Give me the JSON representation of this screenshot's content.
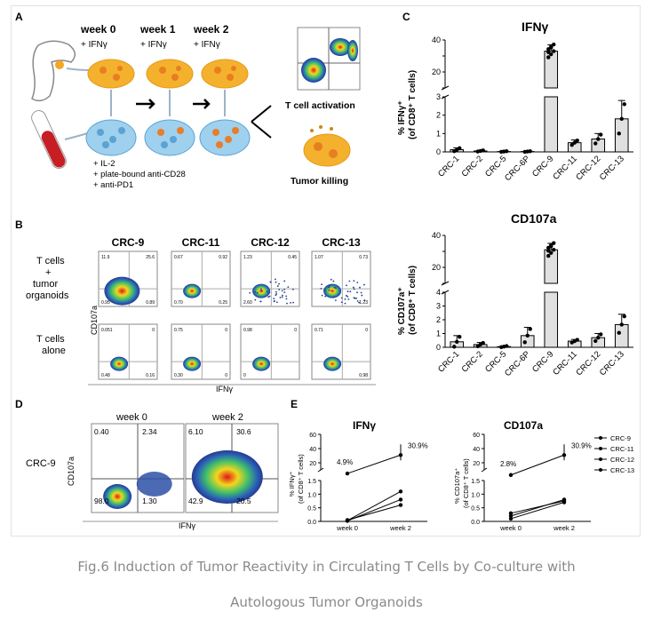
{
  "panels": {
    "A": {
      "letter": "A",
      "weeks": [
        "week 0",
        "week 1",
        "week 2"
      ],
      "ifng": "+ IFNγ",
      "conditions": [
        "+ IL-2",
        "+ plate-bound anti-CD28",
        "+ anti-PD1"
      ],
      "activation": "T cell activation",
      "killing": "Tumor killing"
    },
    "B": {
      "letter": "B",
      "samples": [
        "CRC-9",
        "CRC-11",
        "CRC-12",
        "CRC-13"
      ],
      "row1": [
        "T cells",
        "+",
        "tumor",
        "organoids"
      ],
      "row2": [
        "T cells",
        "alone"
      ],
      "ylabel": "CD107a",
      "xlabel": "IFNγ",
      "quad_top": [
        [
          "11.9",
          "25.6"
        ],
        [
          "0.67",
          "0.92"
        ],
        [
          "1.23",
          "0.45"
        ],
        [
          "1.07",
          "0.73"
        ]
      ],
      "quad_bot1": [
        [
          "0.95",
          "0.89"
        ],
        [
          "0.70",
          "0.25"
        ],
        [
          "2.60",
          ""
        ],
        [
          "",
          "1.23"
        ]
      ],
      "quad_alone_top": [
        [
          "0.051",
          "0"
        ],
        [
          "0.75",
          "0"
        ],
        [
          "0.98",
          "0"
        ],
        [
          "0.71",
          "0"
        ]
      ],
      "quad_alone_bot": [
        [
          "0.48",
          "0.16"
        ],
        [
          "0.30",
          "0"
        ],
        [
          "0",
          ""
        ],
        [
          "",
          "0.98"
        ]
      ]
    },
    "C": {
      "letter": "C",
      "title1": "IFNγ",
      "title2": "CD107a",
      "ylabel1a": "% IFNγ⁺",
      "ylabel1b": "(of CD8⁺ T cells)",
      "ylabel2a": "% CD107a⁺",
      "ylabel2b": "(of CD8⁺ T cells)",
      "categories": [
        "CRC-1",
        "CRC-2",
        "CRC-5",
        "CRC-6P",
        "CRC-9",
        "CRC-11",
        "CRC-12",
        "CRC-13"
      ]
    },
    "D": {
      "letter": "D",
      "sample": "CRC-9",
      "cols": [
        "week 0",
        "week 2"
      ],
      "ylabel": "CD107a",
      "xlabel": "IFNγ",
      "w0": [
        "0.40",
        "2.34",
        "98.0",
        "1.30"
      ],
      "w2": [
        "6.10",
        "30.6",
        "42.9",
        "20.5"
      ]
    },
    "E": {
      "letter": "E",
      "title1": "IFNγ",
      "title2": "CD107a",
      "ylabel1a": "% IFNγ⁺",
      "ylabel1b": "(of CD8⁺ T cells)",
      "ylabel2a": "% CD107a⁺",
      "ylabel2b": "(of CD8⁺ T cells)",
      "x": [
        "week 0",
        "week 2"
      ],
      "ann1a": "4.9%",
      "ann1b": "30.9%",
      "ann2a": "2.8%",
      "ann2b": "30.9%",
      "legend": [
        "CRC-9",
        "CRC-11",
        "CRC-12",
        "CRC-13"
      ]
    }
  },
  "chart_data": [
    {
      "type": "bar",
      "title": "IFNγ",
      "categories": [
        "CRC-1",
        "CRC-2",
        "CRC-5",
        "CRC-6P",
        "CRC-9",
        "CRC-11",
        "CRC-12",
        "CRC-13"
      ],
      "values": [
        0.12,
        0.05,
        0.02,
        0.02,
        33,
        0.5,
        0.7,
        1.8
      ],
      "errors": [
        0.1,
        0.04,
        0.02,
        0.02,
        4,
        0.15,
        0.3,
        1.0
      ],
      "ylim_lower": [
        0,
        3
      ],
      "ylim_upper": [
        10,
        40
      ]
    },
    {
      "type": "bar",
      "title": "CD107a",
      "categories": [
        "CRC-1",
        "CRC-2",
        "CRC-5",
        "CRC-6P",
        "CRC-9",
        "CRC-11",
        "CRC-12",
        "CRC-13"
      ],
      "values": [
        0.4,
        0.2,
        0.05,
        0.85,
        31,
        0.45,
        0.7,
        1.65
      ],
      "errors": [
        0.45,
        0.15,
        0.05,
        0.6,
        4,
        0.12,
        0.3,
        0.75
      ],
      "ylim_lower": [
        0,
        4
      ],
      "ylim_upper": [
        10,
        40
      ]
    },
    {
      "type": "line",
      "title": "IFNγ",
      "x": [
        "week 0",
        "week 2"
      ],
      "series": [
        {
          "name": "CRC-9",
          "values": [
            4.9,
            30.9
          ]
        },
        {
          "name": "CRC-11",
          "values": [
            0.02,
            0.8
          ]
        },
        {
          "name": "CRC-12",
          "values": [
            0.03,
            1.1
          ]
        },
        {
          "name": "CRC-13",
          "values": [
            0.05,
            0.6
          ]
        }
      ]
    },
    {
      "type": "line",
      "title": "CD107a",
      "x": [
        "week 0",
        "week 2"
      ],
      "series": [
        {
          "name": "CRC-9",
          "values": [
            2.8,
            30.9
          ]
        },
        {
          "name": "CRC-11",
          "values": [
            0.1,
            0.7
          ]
        },
        {
          "name": "CRC-12",
          "values": [
            0.2,
            0.8
          ]
        },
        {
          "name": "CRC-13",
          "values": [
            0.3,
            0.75
          ]
        }
      ]
    }
  ],
  "caption_line1": "Fig.6 Induction of Tumor Reactivity in Circulating T Cells by Co-culture with",
  "caption_line2": "Autologous Tumor Organoids"
}
